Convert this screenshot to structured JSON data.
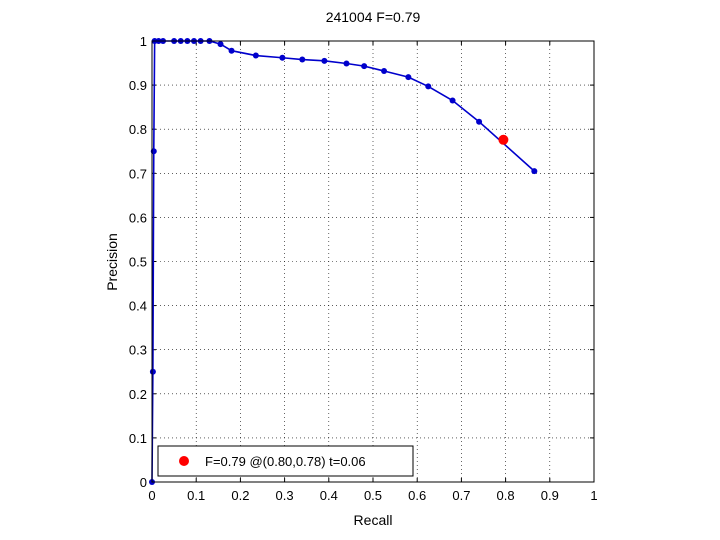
{
  "chart_data": {
    "type": "line",
    "title": "241004 F=0.79",
    "xlabel": "Recall",
    "ylabel": "Precision",
    "xlim": [
      0,
      1
    ],
    "ylim": [
      0,
      1
    ],
    "xticks": [
      "0",
      "0.1",
      "0.2",
      "0.3",
      "0.4",
      "0.5",
      "0.6",
      "0.7",
      "0.8",
      "0.9",
      "1"
    ],
    "yticks": [
      "0",
      "0.1",
      "0.2",
      "0.3",
      "0.4",
      "0.5",
      "0.6",
      "0.7",
      "0.8",
      "0.9",
      "1"
    ],
    "grid": true,
    "legend_position": "bottom-left",
    "series": [
      {
        "color": "#0000cc",
        "marker": "dot",
        "points": [
          [
            0.0,
            0.0
          ],
          [
            0.002,
            0.25
          ],
          [
            0.004,
            0.75
          ],
          [
            0.006,
            1.0
          ],
          [
            0.015,
            1.0
          ],
          [
            0.025,
            1.0
          ],
          [
            0.05,
            1.0
          ],
          [
            0.065,
            1.0
          ],
          [
            0.08,
            1.0
          ],
          [
            0.095,
            1.0
          ],
          [
            0.11,
            1.0
          ],
          [
            0.13,
            1.0
          ],
          [
            0.155,
            0.993
          ],
          [
            0.18,
            0.978
          ],
          [
            0.235,
            0.967
          ],
          [
            0.295,
            0.962
          ],
          [
            0.34,
            0.958
          ],
          [
            0.39,
            0.955
          ],
          [
            0.44,
            0.949
          ],
          [
            0.48,
            0.943
          ],
          [
            0.525,
            0.932
          ],
          [
            0.58,
            0.918
          ],
          [
            0.625,
            0.897
          ],
          [
            0.68,
            0.865
          ],
          [
            0.74,
            0.817
          ],
          [
            0.865,
            0.705
          ]
        ]
      }
    ],
    "best_point": {
      "x": 0.795,
      "y": 0.776,
      "color": "#ff0000",
      "label": "F=0.79 @(0.80,0.78) t=0.06"
    }
  }
}
